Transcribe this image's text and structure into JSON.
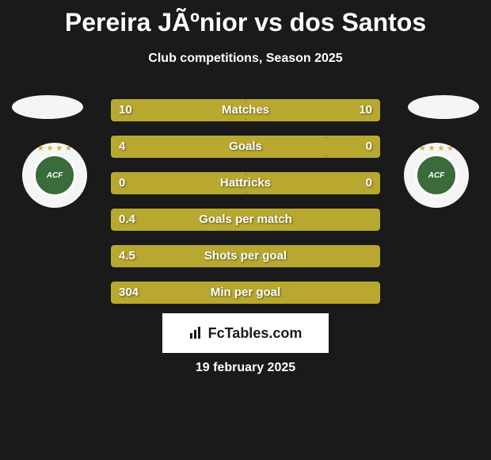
{
  "title": "Pereira JÃºnior vs dos Santos",
  "subtitle": "Club competitions, Season 2025",
  "date": "19 february 2025",
  "fctables_label": "FcTables.com",
  "team_logo_text": "ACF",
  "colors": {
    "background": "#1a1a1a",
    "bar": "#b8a830",
    "text": "#ffffff",
    "badge_bg": "#ffffff",
    "badge_text": "#1a1a1a",
    "logo_green": "#3a6b3a"
  },
  "stats": [
    {
      "label": "Matches",
      "left_val": "10",
      "right_val": "10",
      "left_pct": 50,
      "right_pct": 50
    },
    {
      "label": "Goals",
      "left_val": "4",
      "right_val": "0",
      "left_pct": 80,
      "right_pct": 20
    },
    {
      "label": "Hattricks",
      "left_val": "0",
      "right_val": "0",
      "left_pct": 50,
      "right_pct": 50
    },
    {
      "label": "Goals per match",
      "left_val": "0.4",
      "right_val": "",
      "left_pct": 100,
      "right_pct": 0
    },
    {
      "label": "Shots per goal",
      "left_val": "4.5",
      "right_val": "",
      "left_pct": 100,
      "right_pct": 0
    },
    {
      "label": "Min per goal",
      "left_val": "304",
      "right_val": "",
      "left_pct": 100,
      "right_pct": 0
    }
  ]
}
